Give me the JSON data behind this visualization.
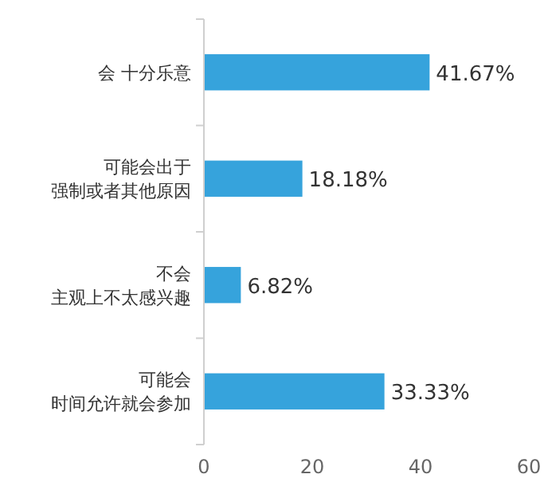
{
  "chart_data": {
    "type": "bar",
    "orientation": "horizontal",
    "categories": [
      "会 十分乐意",
      "可能会出于强制或者其他原因",
      "不会主观上不太感兴趣",
      "可能会时间允许就会参加"
    ],
    "values": [
      41.67,
      18.18,
      6.82,
      33.33
    ],
    "value_labels": [
      "41.67%",
      "18.18%",
      "6.82%",
      "33.33%"
    ],
    "color": "#36a3dc",
    "xlim": [
      0,
      60
    ],
    "xticks": [
      0,
      20,
      40,
      60
    ],
    "grid": false
  }
}
